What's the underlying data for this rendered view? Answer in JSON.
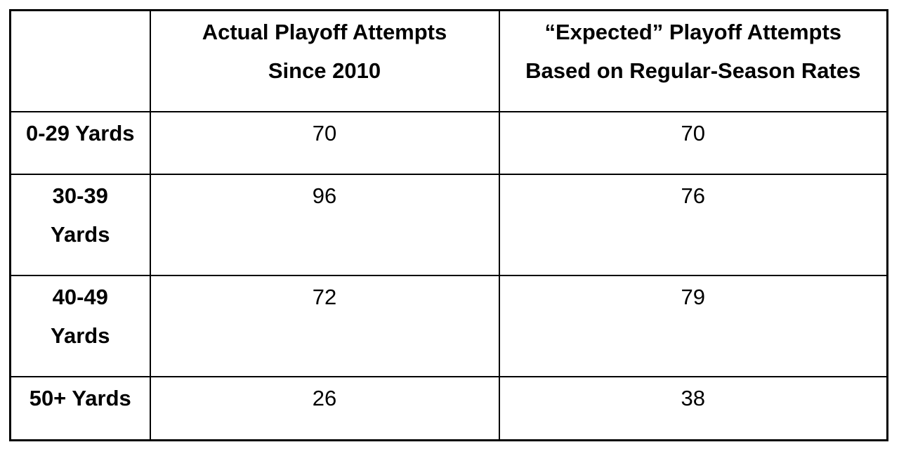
{
  "page": {
    "background_color": "#ffffff",
    "border_color": "#000000",
    "text_color": "#000000"
  },
  "table": {
    "header": {
      "corner": "",
      "actual": [
        "Actual Playoff Attempts",
        "Since 2010"
      ],
      "expected": [
        "“Expected” Playoff Attempts",
        "Based on Regular-Season Rates"
      ]
    },
    "rows": [
      {
        "label": [
          "0-29 Yards",
          ""
        ],
        "actual": "70",
        "expected": "70"
      },
      {
        "label": [
          "30-39",
          "Yards"
        ],
        "actual": "96",
        "expected": "76"
      },
      {
        "label": [
          "40-49",
          "Yards"
        ],
        "actual": "72",
        "expected": "79"
      },
      {
        "label": [
          "50+ Yards",
          ""
        ],
        "actual": "26",
        "expected": "38"
      }
    ]
  },
  "chart_data": {
    "type": "table",
    "categories": [
      "0-29 Yards",
      "30-39 Yards",
      "40-49 Yards",
      "50+ Yards"
    ],
    "series": [
      {
        "name": "Actual Playoff Attempts Since 2010",
        "values": [
          70,
          96,
          72,
          26
        ]
      },
      {
        "name": "“Expected” Playoff Attempts Based on Regular-Season Rates",
        "values": [
          70,
          76,
          79,
          38
        ]
      }
    ]
  }
}
